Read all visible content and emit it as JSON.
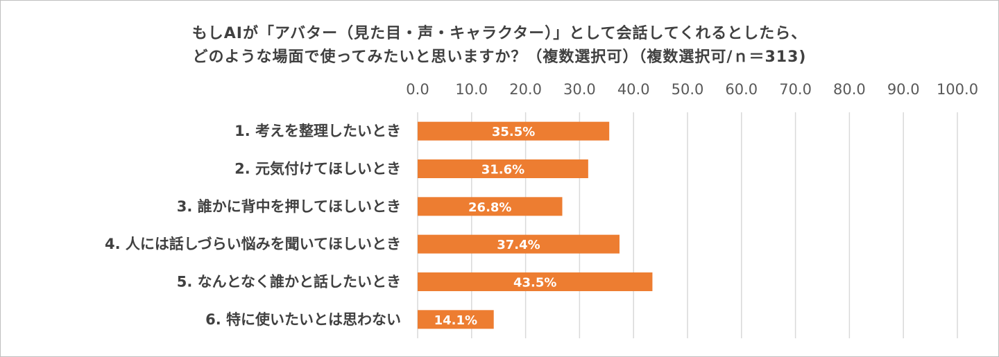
{
  "chart_data": {
    "type": "bar",
    "orientation": "horizontal",
    "title_lines": [
      "もしAIが「アバター（見た目・声・キャラクター）」として会話してくれるとしたら、",
      "どのような場面で使ってみたいと思いますか？（複数選択可）（複数選択可/ｎ＝313)"
    ],
    "categories": [
      "1. 考えを整理したいとき",
      "2. 元気付けてほしいとき",
      "3. 誰かに背中を押してほしいとき",
      "4. 人には話しづらい悩みを聞いてほしいとき",
      "5. なんとなく誰かと話したいとき",
      "6. 特に使いたいとは思わない"
    ],
    "values": [
      35.5,
      31.6,
      26.8,
      37.4,
      43.5,
      14.1
    ],
    "data_labels": [
      "35.5%",
      "31.6%",
      "26.8%",
      "37.4%",
      "43.5%",
      "14.1%"
    ],
    "xlim": [
      0,
      100
    ],
    "ticks": [
      "0.0",
      "10.0",
      "20.0",
      "30.0",
      "40.0",
      "50.0",
      "60.0",
      "70.0",
      "80.0",
      "90.0",
      "100.0"
    ],
    "axis_position": "top",
    "grid": true,
    "bar_color": "#ED7D31"
  }
}
